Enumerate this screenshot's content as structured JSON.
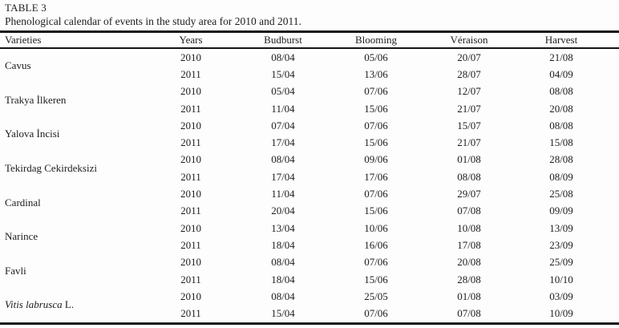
{
  "page": {
    "title": "TABLE 3",
    "caption": "Phenological calendar of events in the study area for 2010 and 2011."
  },
  "table": {
    "headers": [
      "Varieties",
      "Years",
      "Budburst",
      "Blooming",
      "Véraison",
      "Harvest"
    ],
    "groups": [
      {
        "variety": "Cavus",
        "variety_italic": false,
        "variety_suffix": "",
        "rows": [
          [
            "2010",
            "08/04",
            "05/06",
            "20/07",
            "21/08"
          ],
          [
            "2011",
            "15/04",
            "13/06",
            "28/07",
            "04/09"
          ]
        ]
      },
      {
        "variety": "Trakya İlkeren",
        "variety_italic": false,
        "variety_suffix": "",
        "rows": [
          [
            "2010",
            "05/04",
            "07/06",
            "12/07",
            "08/08"
          ],
          [
            "2011",
            "11/04",
            "15/06",
            "21/07",
            "20/08"
          ]
        ]
      },
      {
        "variety": "Yalova İncisi",
        "variety_italic": false,
        "variety_suffix": "",
        "rows": [
          [
            "2010",
            "07/04",
            "07/06",
            "15/07",
            "08/08"
          ],
          [
            "2011",
            "17/04",
            "15/06",
            "21/07",
            "15/08"
          ]
        ]
      },
      {
        "variety": "Tekirdag Cekirdeksizi",
        "variety_italic": false,
        "variety_suffix": "",
        "rows": [
          [
            "2010",
            "08/04",
            "09/06",
            "01/08",
            "28/08"
          ],
          [
            "2011",
            "17/04",
            "17/06",
            "08/08",
            "08/09"
          ]
        ]
      },
      {
        "variety": "Cardinal",
        "variety_italic": false,
        "variety_suffix": "",
        "rows": [
          [
            "2010",
            "11/04",
            "07/06",
            "29/07",
            "25/08"
          ],
          [
            "2011",
            "20/04",
            "15/06",
            "07/08",
            "09/09"
          ]
        ]
      },
      {
        "variety": "Narince",
        "variety_italic": false,
        "variety_suffix": "",
        "rows": [
          [
            "2010",
            "13/04",
            "10/06",
            "10/08",
            "13/09"
          ],
          [
            "2011",
            "18/04",
            "16/06",
            "17/08",
            "23/09"
          ]
        ]
      },
      {
        "variety": "Favli",
        "variety_italic": false,
        "variety_suffix": "",
        "rows": [
          [
            "2010",
            "08/04",
            "07/06",
            "20/08",
            "25/09"
          ],
          [
            "2011",
            "18/04",
            "15/06",
            "28/08",
            "10/10"
          ]
        ]
      },
      {
        "variety": "Vitis labrusca",
        "variety_italic": true,
        "variety_suffix": " L.",
        "rows": [
          [
            "2010",
            "08/04",
            "25/05",
            "01/08",
            "03/09"
          ],
          [
            "2011",
            "15/04",
            "07/06",
            "07/08",
            "10/09"
          ]
        ]
      }
    ],
    "column_keys": [
      "year",
      "budburst",
      "blooming",
      "veraison",
      "harvest"
    ],
    "colors": {
      "text": "#1d1d1d",
      "rule": "#141414",
      "background": "#fdfdfd"
    }
  }
}
